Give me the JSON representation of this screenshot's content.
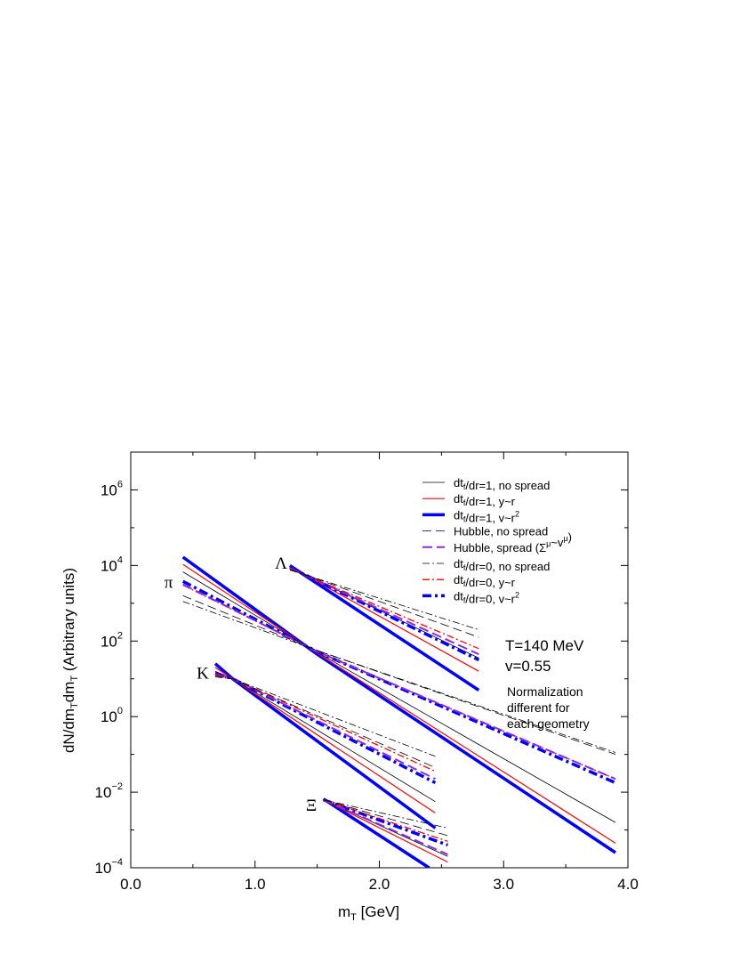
{
  "chart_data": {
    "type": "line",
    "xlabel_main": "m",
    "xlabel_sub": "T",
    "xlabel_rest": " [GeV]",
    "ylabel": "dN/dm_T dm_T (Arbitrary units)",
    "xlim": [
      0.0,
      4.0
    ],
    "ylim_log10": [
      -4,
      7
    ],
    "y_scale": "log",
    "grid": false,
    "legend_position": "top-right",
    "x_ticks": [
      0.0,
      1.0,
      2.0,
      3.0,
      4.0
    ],
    "x_tick_labels": [
      "0.0",
      "1.0",
      "2.0",
      "3.0",
      "4.0"
    ],
    "y_tick_exponents": [
      -4,
      -2,
      0,
      2,
      4,
      6
    ],
    "y_tick_base": "10",
    "annotations": {
      "temperature": "T=140 MeV",
      "velocity": "v=0.55",
      "note_line1": "Normalization",
      "note_line2": "different for",
      "note_line3": "each geometry"
    },
    "particle_labels": [
      {
        "text": "π",
        "x": 0.27,
        "y_log10": 3.55
      },
      {
        "text": "Λ",
        "x": 1.16,
        "y_log10": 4.05
      },
      {
        "text": "K",
        "x": 0.53,
        "y_log10": 1.15
      },
      {
        "text": "Ξ",
        "x": 1.41,
        "y_log10": -2.35
      }
    ],
    "legend": [
      {
        "style": "thin-solid-black",
        "parts": [
          [
            "dt",
            ""
          ],
          [
            "f",
            "sub"
          ],
          [
            "/dr=1, no spread",
            ""
          ]
        ]
      },
      {
        "style": "solid-red",
        "parts": [
          [
            "dt",
            ""
          ],
          [
            "f",
            "sub"
          ],
          [
            "/dr=1, y~r",
            ""
          ]
        ]
      },
      {
        "style": "thick-solid-blue",
        "parts": [
          [
            "dt",
            ""
          ],
          [
            "f",
            "sub"
          ],
          [
            "/dr=1, v~r",
            ""
          ],
          [
            "2",
            "sup"
          ]
        ]
      },
      {
        "style": "dash-black",
        "parts": [
          [
            "Hubble, no spread",
            ""
          ]
        ]
      },
      {
        "style": "dash-purple",
        "parts": [
          [
            "Hubble, spread (Σ",
            ""
          ],
          [
            "μ",
            "sup"
          ],
          [
            "~v",
            ""
          ],
          [
            "μ",
            "sup"
          ],
          [
            ")",
            ""
          ]
        ]
      },
      {
        "style": "dashdot-black",
        "parts": [
          [
            "dt",
            ""
          ],
          [
            "f",
            "sub"
          ],
          [
            "/dr=0, no spread",
            ""
          ]
        ]
      },
      {
        "style": "dashdot-red",
        "parts": [
          [
            "dt",
            ""
          ],
          [
            "f",
            "sub"
          ],
          [
            "/dr=0, y~r",
            ""
          ]
        ]
      },
      {
        "style": "thick-dashdot-blue",
        "parts": [
          [
            "dt",
            ""
          ],
          [
            "f",
            "sub"
          ],
          [
            "/dr=0, v~r",
            ""
          ],
          [
            "2",
            "sup"
          ]
        ]
      }
    ],
    "styles": {
      "thin-solid-black": {
        "color": "#000000",
        "width": 0.8,
        "dash": ""
      },
      "solid-red": {
        "color": "#ff0000",
        "width": 1.2,
        "dash": ""
      },
      "thick-solid-blue": {
        "color": "#0000ff",
        "width": 3.5,
        "dash": ""
      },
      "dash-black": {
        "color": "#000000",
        "width": 0.8,
        "dash": "10,5"
      },
      "dash-purple": {
        "color": "#8a2be2",
        "width": 2.0,
        "dash": "11,5"
      },
      "dashdot-black": {
        "color": "#000000",
        "width": 0.8,
        "dash": "8,3,2,3"
      },
      "dashdot-red": {
        "color": "#ff0000",
        "width": 1.3,
        "dash": "8,3,2,3"
      },
      "thick-dashdot-blue": {
        "color": "#0000ff",
        "width": 3.5,
        "dash": "10,4,3,4"
      }
    },
    "series": [
      {
        "particle": "pi",
        "style": "thick-solid-blue",
        "x": [
          0.42,
          1.5,
          3.9
        ],
        "y_log10": [
          4.22,
          1.65,
          -3.6
        ]
      },
      {
        "particle": "pi",
        "style": "solid-red",
        "x": [
          0.42,
          1.5,
          3.9
        ],
        "y_log10": [
          4.03,
          1.68,
          -3.35
        ]
      },
      {
        "particle": "pi",
        "style": "thin-solid-black",
        "x": [
          0.42,
          1.5,
          3.9
        ],
        "y_log10": [
          3.83,
          1.7,
          -2.8
        ]
      },
      {
        "particle": "pi",
        "style": "thick-dashdot-blue",
        "x": [
          0.42,
          1.5,
          3.9
        ],
        "y_log10": [
          3.58,
          1.72,
          -1.75
        ]
      },
      {
        "particle": "pi",
        "style": "dashdot-red",
        "x": [
          0.42,
          1.5,
          3.9
        ],
        "y_log10": [
          3.48,
          1.72,
          -1.65
        ]
      },
      {
        "particle": "pi",
        "style": "dash-purple",
        "x": [
          0.42,
          1.5,
          3.9
        ],
        "y_log10": [
          3.5,
          1.72,
          -1.65
        ]
      },
      {
        "particle": "pi",
        "style": "dash-black",
        "x": [
          0.42,
          1.5,
          3.9
        ],
        "y_log10": [
          3.2,
          1.75,
          -1.0
        ]
      },
      {
        "particle": "pi",
        "style": "dashdot-black",
        "x": [
          0.42,
          1.5,
          3.9
        ],
        "y_log10": [
          3.05,
          1.75,
          -0.95
        ]
      },
      {
        "particle": "K",
        "style": "thick-solid-blue",
        "x": [
          0.68,
          0.82,
          2.45
        ],
        "y_log10": [
          1.4,
          1.0,
          -2.95
        ]
      },
      {
        "particle": "K",
        "style": "solid-red",
        "x": [
          0.68,
          0.82,
          2.45
        ],
        "y_log10": [
          1.3,
          1.0,
          -2.55
        ]
      },
      {
        "particle": "K",
        "style": "thin-solid-black",
        "x": [
          0.68,
          0.82,
          2.45
        ],
        "y_log10": [
          1.2,
          1.0,
          -2.25
        ]
      },
      {
        "particle": "K",
        "style": "thick-dashdot-blue",
        "x": [
          0.68,
          0.82,
          2.45
        ],
        "y_log10": [
          1.15,
          1.0,
          -1.75
        ]
      },
      {
        "particle": "K",
        "style": "dash-purple",
        "x": [
          0.68,
          0.82,
          2.45
        ],
        "y_log10": [
          1.12,
          1.0,
          -1.65
        ]
      },
      {
        "particle": "K",
        "style": "dashdot-red",
        "x": [
          0.68,
          0.82,
          2.45
        ],
        "y_log10": [
          1.12,
          1.0,
          -1.45
        ]
      },
      {
        "particle": "K",
        "style": "dash-black",
        "x": [
          0.68,
          0.82,
          2.45
        ],
        "y_log10": [
          1.08,
          1.0,
          -1.35
        ]
      },
      {
        "particle": "K",
        "style": "dashdot-black",
        "x": [
          0.68,
          0.82,
          2.45
        ],
        "y_log10": [
          1.05,
          1.0,
          -1.05
        ]
      },
      {
        "particle": "Lambda",
        "style": "thick-solid-blue",
        "x": [
          1.28,
          2.8
        ],
        "y_log10": [
          4.0,
          0.7
        ]
      },
      {
        "particle": "Lambda",
        "style": "solid-red",
        "x": [
          1.28,
          2.8
        ],
        "y_log10": [
          3.97,
          1.2
        ]
      },
      {
        "particle": "Lambda",
        "style": "thin-solid-black",
        "x": [
          1.28,
          2.8
        ],
        "y_log10": [
          3.95,
          1.55
        ]
      },
      {
        "particle": "Lambda",
        "style": "thick-dashdot-blue",
        "x": [
          1.28,
          2.8
        ],
        "y_log10": [
          3.95,
          1.5
        ]
      },
      {
        "particle": "Lambda",
        "style": "dash-purple",
        "x": [
          1.28,
          2.8
        ],
        "y_log10": [
          3.93,
          1.65
        ]
      },
      {
        "particle": "Lambda",
        "style": "dashdot-red",
        "x": [
          1.28,
          2.8
        ],
        "y_log10": [
          3.92,
          1.8
        ]
      },
      {
        "particle": "Lambda",
        "style": "dash-black",
        "x": [
          1.28,
          2.8
        ],
        "y_log10": [
          3.9,
          2.1
        ]
      },
      {
        "particle": "Lambda",
        "style": "dashdot-black",
        "x": [
          1.28,
          2.8
        ],
        "y_log10": [
          3.88,
          2.3
        ]
      },
      {
        "particle": "Xi",
        "style": "thick-solid-blue",
        "x": [
          1.55,
          2.4
        ],
        "y_log10": [
          -2.18,
          -4.0
        ]
      },
      {
        "particle": "Xi",
        "style": "solid-red",
        "x": [
          1.55,
          2.55
        ],
        "y_log10": [
          -2.2,
          -3.85
        ]
      },
      {
        "particle": "Xi",
        "style": "thin-solid-black",
        "x": [
          1.55,
          2.55
        ],
        "y_log10": [
          -2.2,
          -3.7
        ]
      },
      {
        "particle": "Xi",
        "style": "thick-dashdot-blue",
        "x": [
          1.55,
          2.55
        ],
        "y_log10": [
          -2.2,
          -3.4
        ]
      },
      {
        "particle": "Xi",
        "style": "dash-purple",
        "x": [
          1.55,
          2.55
        ],
        "y_log10": [
          -2.2,
          -3.65
        ]
      },
      {
        "particle": "Xi",
        "style": "dashdot-red",
        "x": [
          1.55,
          2.55
        ],
        "y_log10": [
          -2.2,
          -3.3
        ]
      },
      {
        "particle": "Xi",
        "style": "dash-black",
        "x": [
          1.55,
          2.55
        ],
        "y_log10": [
          -2.2,
          -3.15
        ]
      },
      {
        "particle": "Xi",
        "style": "dashdot-black",
        "x": [
          1.55,
          2.55
        ],
        "y_log10": [
          -2.2,
          -2.95
        ]
      }
    ]
  }
}
